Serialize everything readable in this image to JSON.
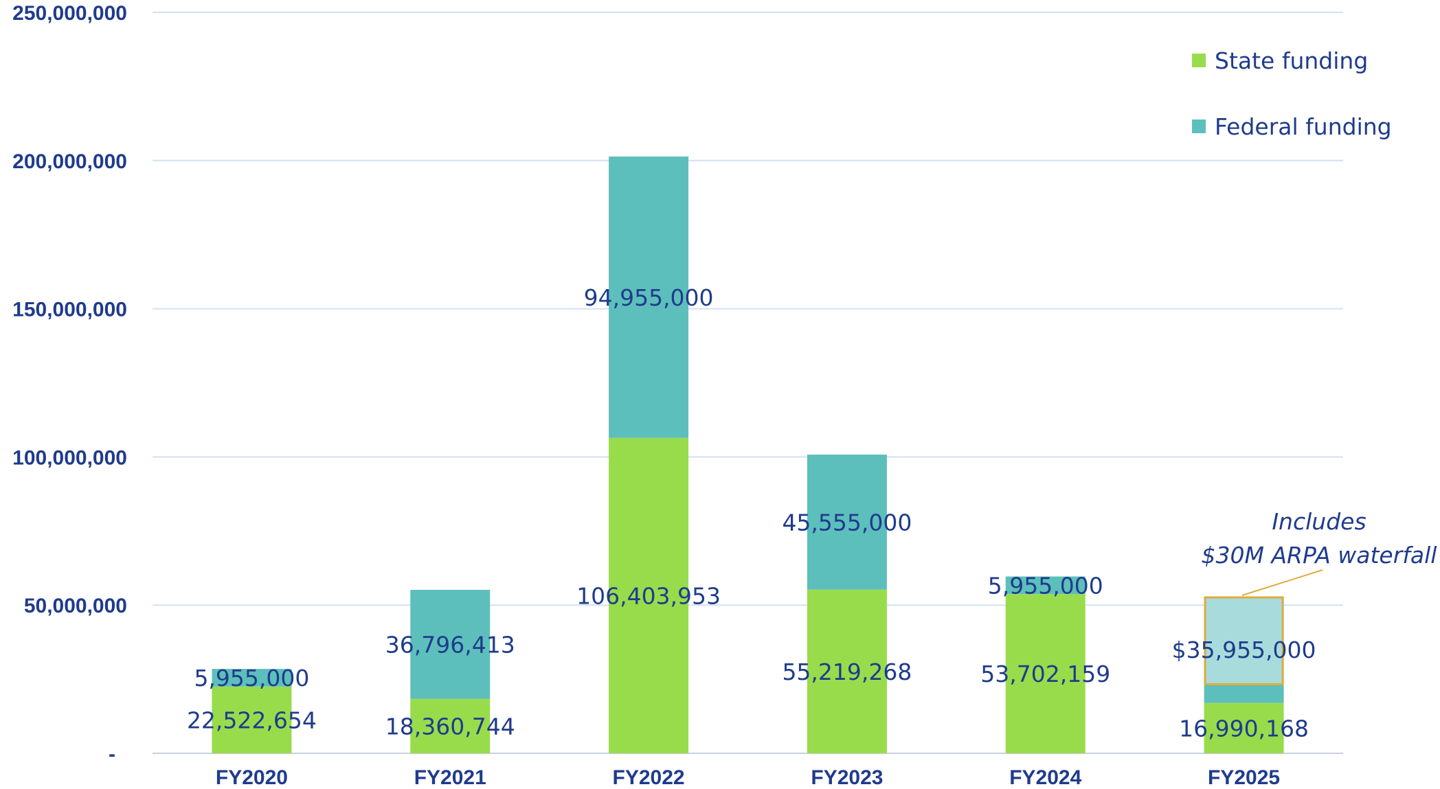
{
  "chart_data": {
    "type": "bar",
    "stacked": true,
    "title": "",
    "xlabel": "",
    "ylabel": "",
    "categories": [
      "FY2020",
      "FY2021",
      "FY2022",
      "FY2023",
      "FY2024",
      "FY2025"
    ],
    "series": [
      {
        "name": "State funding",
        "color": "#98dc4c",
        "values": [
          22522654,
          18360744,
          106403953,
          55219268,
          53702159,
          16990168
        ],
        "labels": [
          "22,522,654",
          "18,360,744",
          "106,403,953",
          "55,219,268",
          "53,702,159",
          "16,990,168"
        ]
      },
      {
        "name": "Federal funding",
        "color": "#5dbfbb",
        "values": [
          5955000,
          36796413,
          94955000,
          45555000,
          5955000,
          35955000
        ],
        "labels": [
          "5,955,000",
          "36,796,413",
          "94,955,000",
          "45,555,000",
          "5,955,000",
          "$35,955,000"
        ]
      }
    ],
    "ylim": [
      0,
      250000000
    ],
    "yticks": [
      0,
      50000000,
      100000000,
      150000000,
      200000000,
      250000000
    ],
    "ytick_labels": [
      "-",
      "50,000,000",
      "100,000,000",
      "150,000,000",
      "200,000,000",
      "250,000,000"
    ],
    "grid": true,
    "legend_position": "top-right",
    "highlight": {
      "category": "FY2025",
      "portion_value": 30000000,
      "fill": "#a8dcdc",
      "border": "#e0aa3c"
    },
    "annotation": {
      "lines": [
        "Includes",
        "$30M ARPA waterfall"
      ],
      "target": "FY2025"
    },
    "colors": {
      "axis_text": "#1f3b8c",
      "gridline": "#d4e0f4",
      "axis_line": "#c8d0e4"
    }
  }
}
